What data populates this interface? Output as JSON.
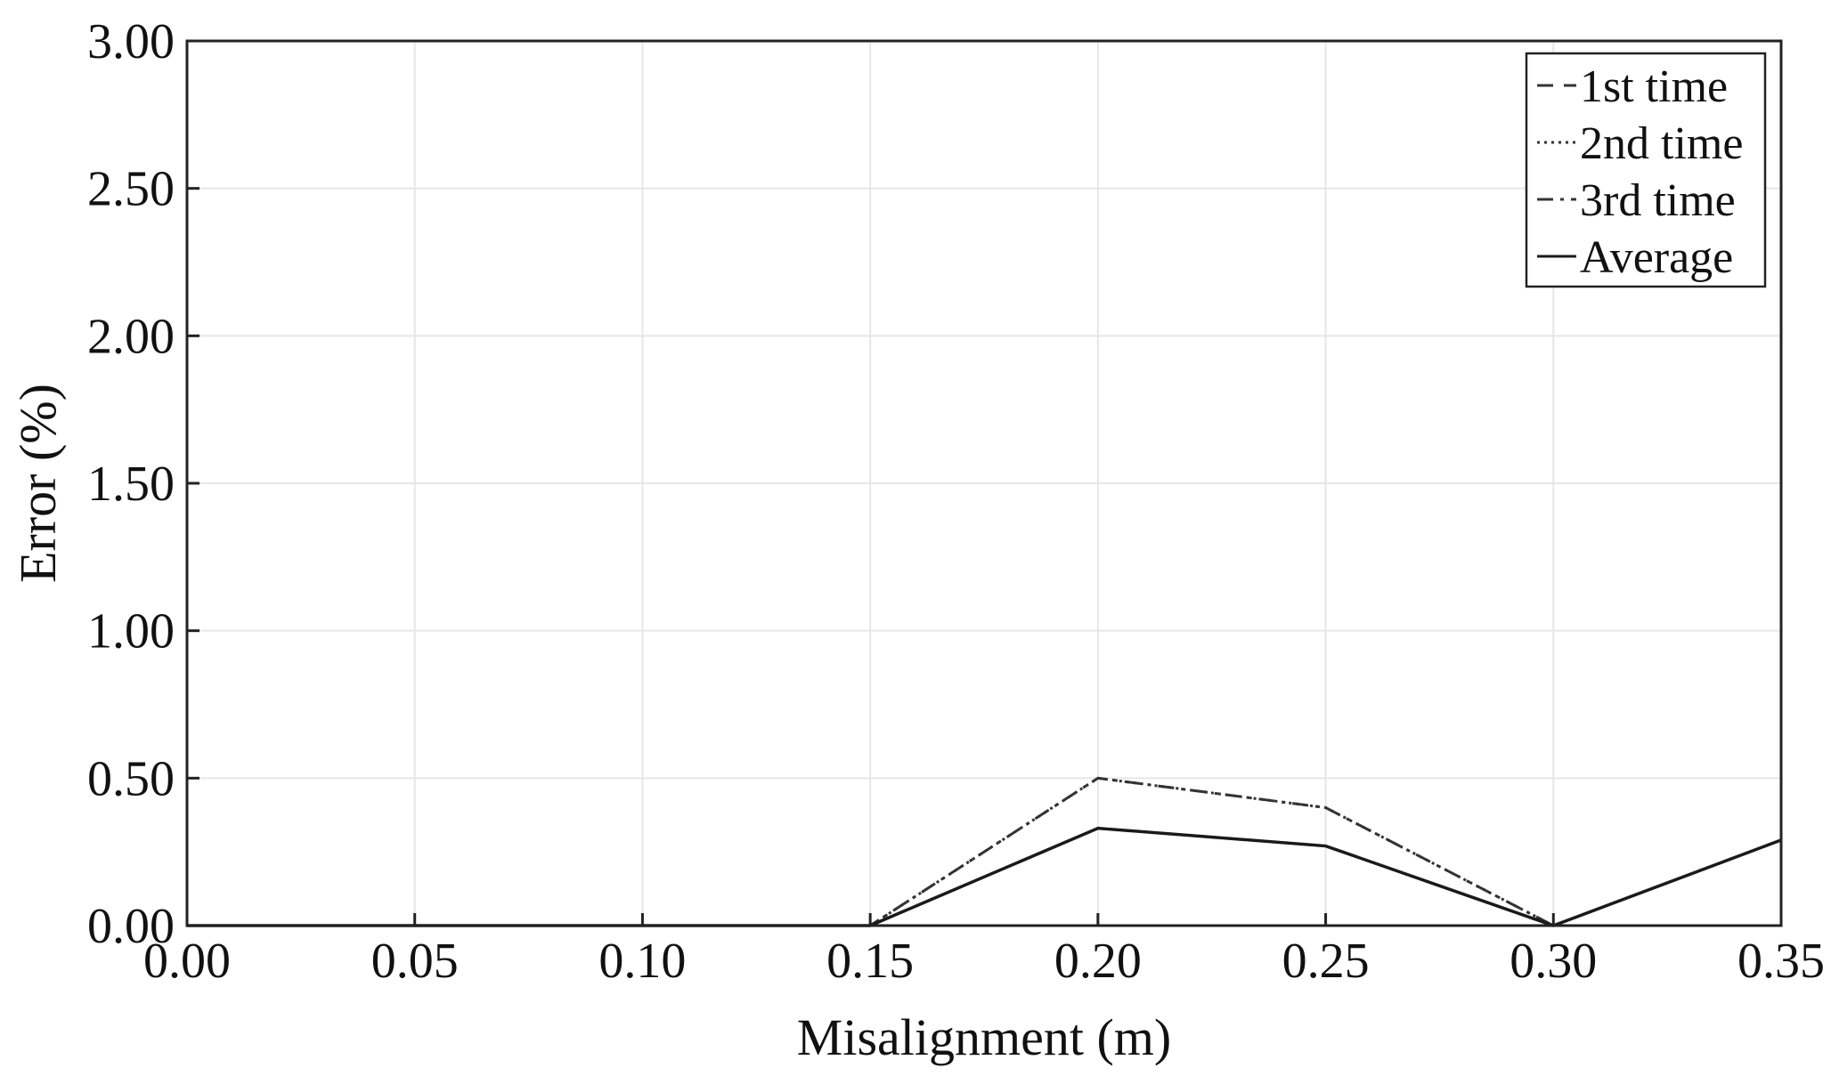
{
  "chart_data": {
    "type": "line",
    "title": "",
    "xlabel": "Misalignment (m)",
    "ylabel": "Error (%)",
    "xlim": [
      0,
      0.35
    ],
    "ylim": [
      0,
      3
    ],
    "x_ticks": [
      0,
      0.05,
      0.1,
      0.15,
      0.2,
      0.25,
      0.3,
      0.35
    ],
    "x_tick_labels": [
      "0.00",
      "0.05",
      "0.10",
      "0.15",
      "0.20",
      "0.25",
      "0.30",
      "0.35"
    ],
    "y_ticks": [
      0,
      0.5,
      1,
      1.5,
      2,
      2.5,
      3
    ],
    "y_tick_labels": [
      "0.00",
      "0.50",
      "1.00",
      "1.50",
      "2.00",
      "2.50",
      "3.00"
    ],
    "grid": true,
    "legend_position": "top-right",
    "x": [
      0,
      0.05,
      0.1,
      0.15,
      0.2,
      0.25,
      0.3,
      0.35
    ],
    "series": [
      {
        "name": "1st time",
        "style": "dashed",
        "color": "#333333",
        "values": [
          0,
          0,
          0,
          0,
          0,
          0,
          0,
          null
        ]
      },
      {
        "name": "2nd time",
        "style": "dotted",
        "color": "#333333",
        "values": [
          0,
          0,
          0,
          0,
          0.5,
          0.4,
          0,
          null
        ]
      },
      {
        "name": "3rd time",
        "style": "dashdot",
        "color": "#333333",
        "values": [
          0,
          0,
          0,
          0,
          0.5,
          0.4,
          0,
          null
        ]
      },
      {
        "name": "Average",
        "style": "solid",
        "color": "#1a1a1a",
        "values": [
          0,
          0,
          0,
          0,
          0.33,
          0.27,
          0,
          0.29
        ]
      }
    ]
  }
}
